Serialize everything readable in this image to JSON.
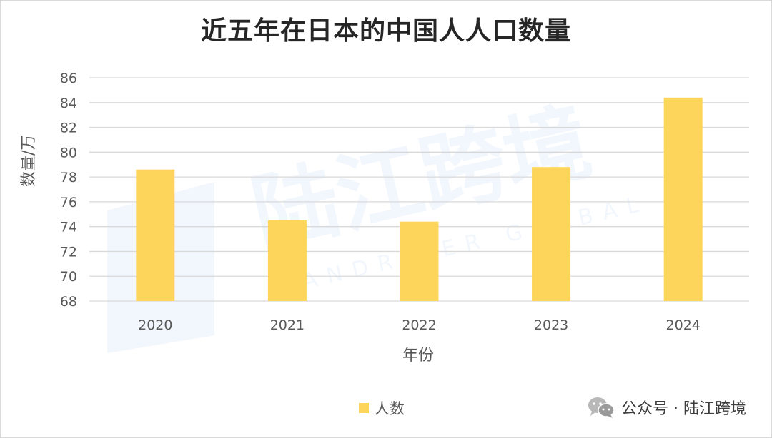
{
  "title": "近五年在日本的中国人人口数量",
  "watermark": {
    "main_text": "陆江跨境",
    "sub_text": "LANDRIVER GLOBAL"
  },
  "footer": {
    "icon": "wechat-icon",
    "text": "公众号 · 陆江跨境"
  },
  "colors": {
    "bar": "#fdd55b",
    "grid": "#d9d9d9",
    "text": "#595959",
    "title": "#262626"
  },
  "chart_data": {
    "type": "bar",
    "title": "近五年在日本的中国人人口数量",
    "xlabel": "年份",
    "ylabel": "数量/万",
    "categories": [
      "2020",
      "2021",
      "2022",
      "2023",
      "2024"
    ],
    "series": [
      {
        "name": "人数",
        "values": [
          78.6,
          74.5,
          74.4,
          78.8,
          84.4
        ]
      }
    ],
    "ylim": [
      68,
      86
    ],
    "yticks": [
      68,
      70,
      72,
      74,
      76,
      78,
      80,
      82,
      84,
      86
    ],
    "grid": true,
    "legend_position": "bottom"
  }
}
